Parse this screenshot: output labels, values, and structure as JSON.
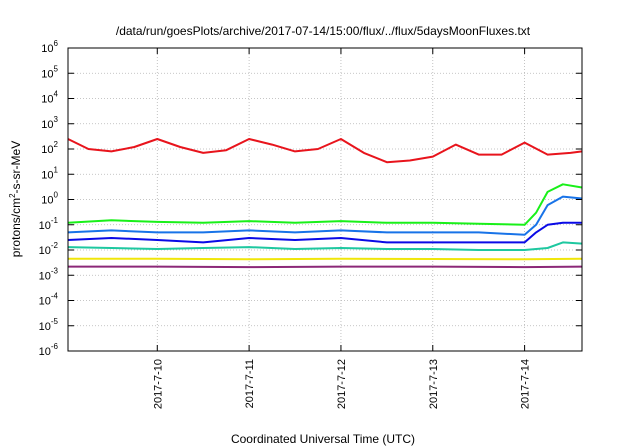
{
  "chart_data": {
    "type": "line",
    "title": "/data/run/goesPlots/archive/2017-07-14/15:00/flux/../flux/5daysMoonFluxes.txt",
    "xlabel": "Coordinated Universal Time (UTC)",
    "ylabel": "protons/cm²-s-sr-MeV",
    "ylabel_parts": {
      "pre": "protons/cm",
      "sup": "2",
      "post": "-s-sr-MeV"
    },
    "yscale": "log",
    "ylim": [
      1e-06,
      1000000.0
    ],
    "y_ticks": [
      {
        "value": 1e-06,
        "base": "10",
        "exp": "-6"
      },
      {
        "value": 1e-05,
        "base": "10",
        "exp": "-5"
      },
      {
        "value": 0.0001,
        "base": "10",
        "exp": "-4"
      },
      {
        "value": 0.001,
        "base": "10",
        "exp": "-3"
      },
      {
        "value": 0.01,
        "base": "10",
        "exp": "-2"
      },
      {
        "value": 0.1,
        "base": "10",
        "exp": "-1"
      },
      {
        "value": 1,
        "base": "10",
        "exp": "0"
      },
      {
        "value": 10.0,
        "base": "10",
        "exp": "1"
      },
      {
        "value": 100.0,
        "base": "10",
        "exp": "2"
      },
      {
        "value": 1000.0,
        "base": "10",
        "exp": "3"
      },
      {
        "value": 10000.0,
        "base": "10",
        "exp": "4"
      },
      {
        "value": 100000.0,
        "base": "10",
        "exp": "5"
      },
      {
        "value": 1000000.0,
        "base": "10",
        "exp": "6"
      }
    ],
    "xlim": [
      "2017-07-09 00:40",
      "2017-07-14 15:00"
    ],
    "x_ticks": [
      {
        "value": "2017-07-10 00:00",
        "label": "2017-7-10"
      },
      {
        "value": "2017-07-11 00:00",
        "label": "2017-7-11"
      },
      {
        "value": "2017-07-12 00:00",
        "label": "2017-7-12"
      },
      {
        "value": "2017-07-13 00:00",
        "label": "2017-7-13"
      },
      {
        "value": "2017-07-14 00:00",
        "label": "2017-7-14"
      }
    ],
    "grid": true,
    "series": [
      {
        "color": "#e8141c",
        "x": [
          "2017-07-09 00:40",
          "2017-07-09 06:00",
          "2017-07-09 12:00",
          "2017-07-09 18:00",
          "2017-07-10 00:00",
          "2017-07-10 06:00",
          "2017-07-10 12:00",
          "2017-07-10 18:00",
          "2017-07-11 00:00",
          "2017-07-11 06:00",
          "2017-07-11 12:00",
          "2017-07-11 18:00",
          "2017-07-12 00:00",
          "2017-07-12 06:00",
          "2017-07-12 12:00",
          "2017-07-12 18:00",
          "2017-07-13 00:00",
          "2017-07-13 06:00",
          "2017-07-13 12:00",
          "2017-07-13 18:00",
          "2017-07-14 00:00",
          "2017-07-14 06:00",
          "2017-07-14 12:00",
          "2017-07-14 15:00"
        ],
        "values": [
          250,
          100,
          80,
          120,
          250,
          120,
          70,
          90,
          250,
          150,
          80,
          100,
          250,
          70,
          30,
          35,
          50,
          150,
          60,
          60,
          180,
          60,
          70,
          80
        ]
      },
      {
        "color": "#19f019",
        "x": [
          "2017-07-09 00:40",
          "2017-07-09 12:00",
          "2017-07-10 00:00",
          "2017-07-10 12:00",
          "2017-07-11 00:00",
          "2017-07-11 12:00",
          "2017-07-12 00:00",
          "2017-07-12 12:00",
          "2017-07-13 00:00",
          "2017-07-13 12:00",
          "2017-07-14 00:00",
          "2017-07-14 03:00",
          "2017-07-14 06:00",
          "2017-07-14 10:00",
          "2017-07-14 15:00"
        ],
        "values": [
          0.12,
          0.15,
          0.13,
          0.12,
          0.14,
          0.12,
          0.14,
          0.12,
          0.12,
          0.11,
          0.1,
          0.3,
          2,
          4,
          3
        ]
      },
      {
        "color": "#1873e8",
        "x": [
          "2017-07-09 00:40",
          "2017-07-09 12:00",
          "2017-07-10 00:00",
          "2017-07-10 12:00",
          "2017-07-11 00:00",
          "2017-07-11 12:00",
          "2017-07-12 00:00",
          "2017-07-12 12:00",
          "2017-07-13 00:00",
          "2017-07-13 12:00",
          "2017-07-14 00:00",
          "2017-07-14 03:00",
          "2017-07-14 06:00",
          "2017-07-14 10:00",
          "2017-07-14 15:00"
        ],
        "values": [
          0.05,
          0.06,
          0.05,
          0.05,
          0.06,
          0.05,
          0.06,
          0.05,
          0.05,
          0.05,
          0.04,
          0.1,
          0.6,
          1.3,
          1.1
        ]
      },
      {
        "color": "#0a0ae6",
        "x": [
          "2017-07-09 00:40",
          "2017-07-09 12:00",
          "2017-07-10 00:00",
          "2017-07-10 12:00",
          "2017-07-11 00:00",
          "2017-07-11 12:00",
          "2017-07-12 00:00",
          "2017-07-12 12:00",
          "2017-07-13 00:00",
          "2017-07-13 12:00",
          "2017-07-14 00:00",
          "2017-07-14 03:00",
          "2017-07-14 06:00",
          "2017-07-14 10:00",
          "2017-07-14 15:00"
        ],
        "values": [
          0.025,
          0.03,
          0.025,
          0.02,
          0.03,
          0.025,
          0.03,
          0.02,
          0.02,
          0.02,
          0.02,
          0.05,
          0.1,
          0.12,
          0.12
        ]
      },
      {
        "color": "#1ec8a0",
        "x": [
          "2017-07-09 00:40",
          "2017-07-09 12:00",
          "2017-07-10 00:00",
          "2017-07-10 12:00",
          "2017-07-11 00:00",
          "2017-07-11 12:00",
          "2017-07-12 00:00",
          "2017-07-12 12:00",
          "2017-07-13 00:00",
          "2017-07-13 12:00",
          "2017-07-14 00:00",
          "2017-07-14 06:00",
          "2017-07-14 10:00",
          "2017-07-14 15:00"
        ],
        "values": [
          0.013,
          0.012,
          0.011,
          0.012,
          0.013,
          0.011,
          0.012,
          0.011,
          0.011,
          0.01,
          0.01,
          0.012,
          0.02,
          0.018
        ]
      },
      {
        "color": "#f0e60a",
        "x": [
          "2017-07-09 00:40",
          "2017-07-10 00:00",
          "2017-07-11 00:00",
          "2017-07-12 00:00",
          "2017-07-13 00:00",
          "2017-07-14 00:00",
          "2017-07-14 15:00"
        ],
        "values": [
          0.0045,
          0.0045,
          0.0043,
          0.0045,
          0.0044,
          0.0043,
          0.0045
        ]
      },
      {
        "color": "#8c2878",
        "x": [
          "2017-07-09 00:40",
          "2017-07-10 00:00",
          "2017-07-11 00:00",
          "2017-07-12 00:00",
          "2017-07-13 00:00",
          "2017-07-14 00:00",
          "2017-07-14 15:00"
        ],
        "values": [
          0.0022,
          0.0022,
          0.0021,
          0.0022,
          0.0022,
          0.0021,
          0.0022
        ]
      }
    ]
  }
}
